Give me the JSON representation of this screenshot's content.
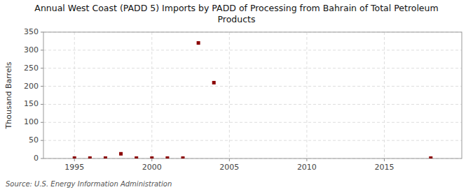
{
  "chart_data": {
    "type": "scatter",
    "title": "Annual West Coast (PADD 5) Imports by PADD of Processing from Bahrain of Total Petroleum\nProducts",
    "ylabel": "Thousand Barrels",
    "source": "Source: U.S. Energy Information Administration",
    "x": [
      1995,
      1996,
      1997,
      1998,
      1999,
      2000,
      2001,
      2002,
      2003,
      2004,
      2018
    ],
    "values": [
      1,
      1,
      1,
      13,
      1,
      1,
      1,
      1,
      320,
      210,
      1
    ],
    "color": "#8b0000",
    "marker": "square",
    "xlim": [
      1993,
      2020
    ],
    "ylim": [
      0,
      350
    ],
    "xticks": [
      1995,
      2000,
      2005,
      2010,
      2015
    ],
    "yticks": [
      0,
      50,
      100,
      150,
      200,
      250,
      300,
      350
    ],
    "grid": true
  }
}
